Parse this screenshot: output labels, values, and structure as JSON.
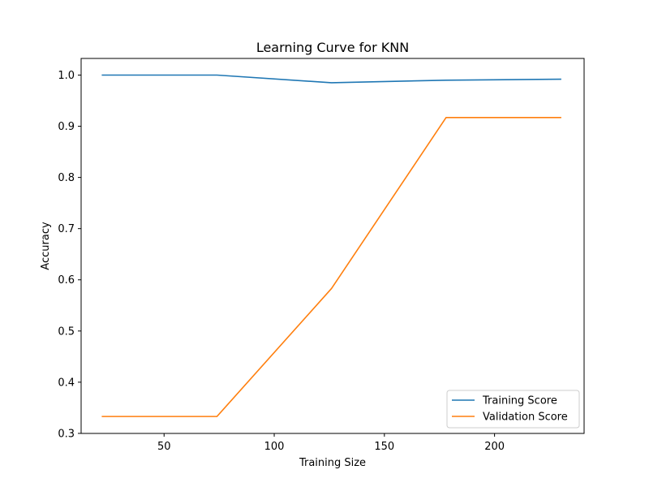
{
  "chart_data": {
    "type": "line",
    "title": "Learning Curve for KNN",
    "xlabel": "Training Size",
    "ylabel": "Accuracy",
    "xlim": [
      12.35,
      240.65
    ],
    "ylim": [
      0.2999,
      1.0325
    ],
    "xticks": [
      50,
      100,
      150,
      200
    ],
    "yticks": [
      0.3,
      0.4,
      0.5,
      0.6,
      0.7,
      0.8,
      0.9,
      1.0
    ],
    "xtick_labels": [
      "50",
      "100",
      "150",
      "200"
    ],
    "ytick_labels": [
      "0.3",
      "0.4",
      "0.5",
      "0.6",
      "0.7",
      "0.8",
      "0.9",
      "1.0"
    ],
    "x": [
      22,
      74,
      126,
      178,
      230
    ],
    "series": [
      {
        "name": "Training Score",
        "color": "#1f77b4",
        "values": [
          1.0,
          1.0,
          0.985,
          0.99,
          0.992
        ]
      },
      {
        "name": "Validation Score",
        "color": "#ff7f0e",
        "values": [
          0.333,
          0.333,
          0.583,
          0.917,
          0.917
        ]
      }
    ],
    "legend_position": "lower-right",
    "grid": false
  }
}
